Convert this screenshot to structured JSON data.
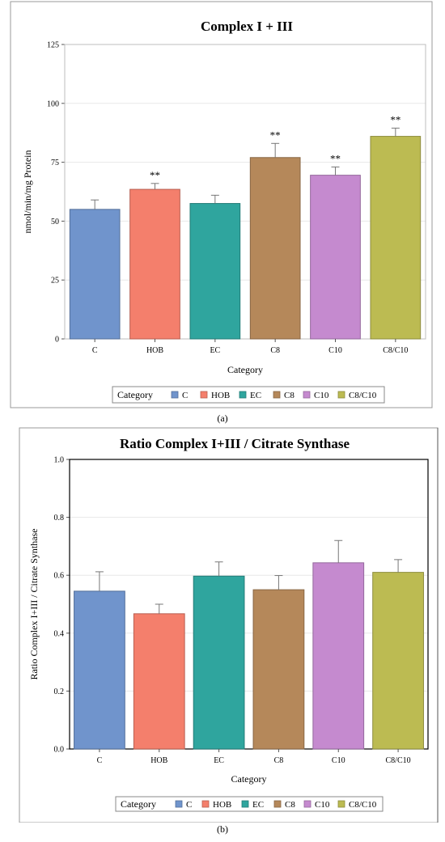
{
  "chart_data": [
    {
      "type": "bar",
      "title": "Complex I + III",
      "xlabel": "Category",
      "ylabel": "nmol/min/mg Protein",
      "categories": [
        "C",
        "HOB",
        "EC",
        "C8",
        "C10",
        "C8/C10"
      ],
      "values": [
        55,
        63.5,
        57.5,
        77,
        69.5,
        86
      ],
      "errors": [
        4,
        2.5,
        3.5,
        6,
        3.5,
        3.5
      ],
      "annotations": [
        "",
        "**",
        "",
        "**",
        "**",
        "**"
      ],
      "ylim": [
        0,
        125
      ],
      "yticks": [
        "0",
        "25",
        "50",
        "75",
        "100",
        "125"
      ],
      "grid": true,
      "legend_title": "Category",
      "legend_placement": "bottom",
      "colors": [
        "#7094cc",
        "#f47f6c",
        "#2fa59e",
        "#b5885a",
        "#c58acf",
        "#bcbb52"
      ]
    },
    {
      "type": "bar",
      "title": "Ratio Complex I+III / Citrate Synthase",
      "xlabel": "Category",
      "ylabel": "Ratio Complex I+III / Citrate Synthase",
      "categories": [
        "C",
        "HOB",
        "EC",
        "C8",
        "C10",
        "C8/C10"
      ],
      "values": [
        0.545,
        0.467,
        0.597,
        0.55,
        0.643,
        0.61
      ],
      "errors": [
        0.067,
        0.033,
        0.049,
        0.049,
        0.077,
        0.044
      ],
      "annotations": [
        "",
        "",
        "",
        "",
        "",
        ""
      ],
      "ylim": [
        0,
        1.0
      ],
      "yticks": [
        "0.0",
        "0.2",
        "0.4",
        "0.6",
        "0.8",
        "1.0"
      ],
      "grid": true,
      "legend_title": "Category",
      "legend_placement": "bottom",
      "colors": [
        "#7094cc",
        "#f47f6c",
        "#2fa59e",
        "#b5885a",
        "#c58acf",
        "#bcbb52"
      ]
    }
  ],
  "captions": [
    "(a)",
    "(b)"
  ]
}
